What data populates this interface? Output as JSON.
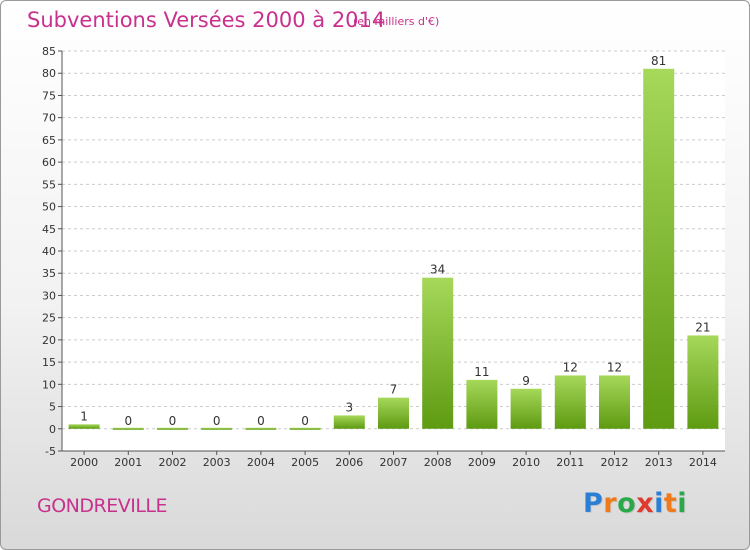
{
  "header": {
    "title": "Subventions Versées 2000 à 2014",
    "subtitle": "(en milliers d'€)"
  },
  "footer": {
    "commune": "GONDREVILLE",
    "logo_letters": [
      "P",
      "r",
      "o",
      "x",
      "i",
      "t",
      "i"
    ],
    "logo_colors": [
      "#2a7fd4",
      "#f07a1a",
      "#2aa84a",
      "#e03a2f",
      "#2a7fd4",
      "#f07a1a",
      "#2aa84a"
    ]
  },
  "colors": {
    "title": "#c8318d",
    "bar_light": "#a6d85a",
    "bar_dark": "#5e9a12",
    "grid": "#cccccc",
    "axis": "#555555"
  },
  "chart_data": {
    "type": "bar",
    "categories": [
      "2000",
      "2001",
      "2002",
      "2003",
      "2004",
      "2005",
      "2006",
      "2007",
      "2008",
      "2009",
      "2010",
      "2011",
      "2012",
      "2013",
      "2014"
    ],
    "values": [
      1,
      0,
      0,
      0,
      0,
      0,
      3,
      7,
      34,
      11,
      9,
      12,
      12,
      81,
      21
    ],
    "ylim": [
      -5,
      85
    ],
    "yticks": [
      -5,
      0,
      5,
      10,
      15,
      20,
      25,
      30,
      35,
      40,
      45,
      50,
      55,
      60,
      65,
      70,
      75,
      80,
      85
    ],
    "grid": true,
    "value_labels": true
  }
}
